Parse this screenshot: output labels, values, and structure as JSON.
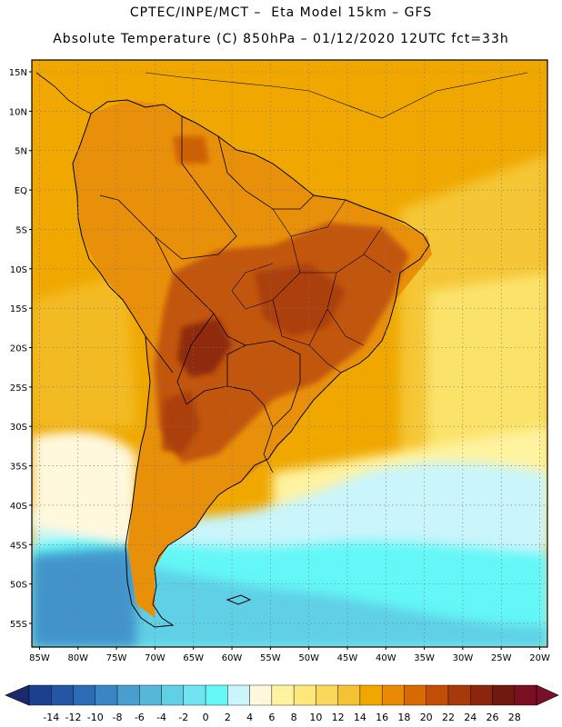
{
  "header": {
    "line1": "CPTEC/INPE/MCT –  Eta Model 15km – GFS",
    "line2": "Absolute Temperature (C) 850hPa – 01/12/2020 12UTC fct=33h"
  },
  "map": {
    "lat_labels": [
      "15N",
      "10N",
      "5N",
      "EQ",
      "5S",
      "10S",
      "15S",
      "20S",
      "25S",
      "30S",
      "35S",
      "40S",
      "45S",
      "50S",
      "55S"
    ],
    "lon_labels": [
      "85W",
      "80W",
      "75W",
      "70W",
      "65W",
      "60W",
      "55W",
      "50W",
      "45W",
      "40W",
      "35W",
      "30W",
      "25W",
      "20W"
    ],
    "lat_range": [
      -58,
      16.5
    ],
    "lon_range": [
      -86,
      -19
    ],
    "grid": true,
    "colors": {
      "ocean_north": "#f0a800",
      "ocean_east_warm": "#f5c634",
      "ocean_east_light": "#fbe36a",
      "continent_base": "#e9900a",
      "hot_core": "#c2560f",
      "hottest": "#8f2a08",
      "south_cold": "#5fd8ee",
      "south_cool": "#aaf0f8",
      "coast": "#000000"
    }
  },
  "colorbar": {
    "labels": [
      "-14",
      "-12",
      "-10",
      "-8",
      "-6",
      "-4",
      "-2",
      "0",
      "2",
      "4",
      "6",
      "8",
      "10",
      "12",
      "14",
      "16",
      "18",
      "20",
      "22",
      "24",
      "26",
      "28"
    ],
    "colors": [
      "#1c3f8e",
      "#2356a3",
      "#2b6cb6",
      "#3a85c4",
      "#4a9ecf",
      "#56b7d9",
      "#5fd0e6",
      "#70e4f1",
      "#64f7f7",
      "#c9f5fb",
      "#fff8dd",
      "#fff3a0",
      "#fde879",
      "#f9d85c",
      "#f4c232",
      "#f0a800",
      "#e98a00",
      "#d96a02",
      "#c24d05",
      "#a63a0a",
      "#8b250c",
      "#6e1a10",
      "#7a0f22"
    ],
    "end_left": "#1a2a6c",
    "end_right": "#7a0f2a"
  }
}
